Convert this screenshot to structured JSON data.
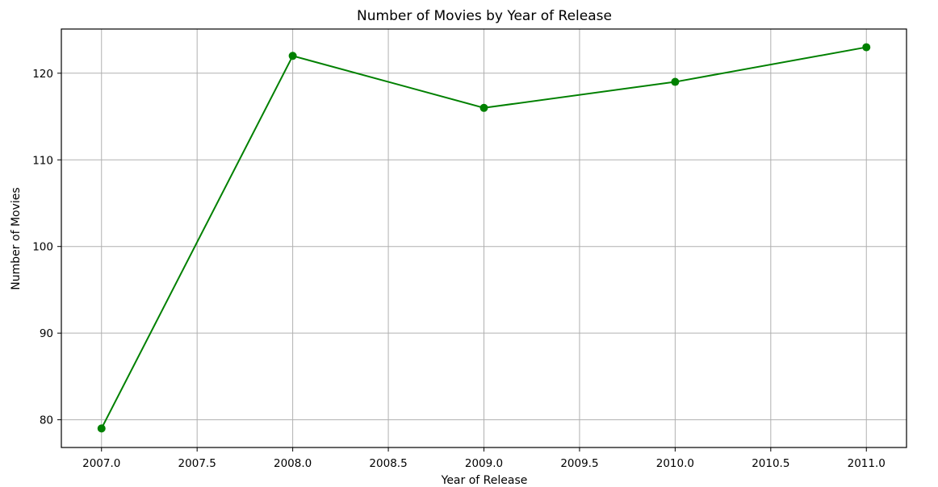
{
  "chart_data": {
    "type": "line",
    "title": "Number of Movies by Year of Release",
    "xlabel": "Year of Release",
    "ylabel": "Number of Movies",
    "x": [
      2007,
      2008,
      2009,
      2010,
      2011
    ],
    "series": [
      {
        "values": [
          79,
          122,
          116,
          119,
          123
        ],
        "color": "#008000",
        "marker": "circle"
      }
    ],
    "xlim": [
      2006.79,
      2011.21
    ],
    "ylim": [
      76.8,
      125.1
    ],
    "xticks": [
      2007.0,
      2007.5,
      2008.0,
      2008.5,
      2009.0,
      2009.5,
      2010.0,
      2010.5,
      2011.0
    ],
    "xtick_labels": [
      "2007.0",
      "2007.5",
      "2008.0",
      "2008.5",
      "2009.0",
      "2009.5",
      "2010.0",
      "2010.5",
      "2011.0"
    ],
    "yticks": [
      80,
      90,
      100,
      110,
      120
    ],
    "ytick_labels": [
      "80",
      "90",
      "100",
      "110",
      "120"
    ],
    "grid": true,
    "legend": "none"
  }
}
